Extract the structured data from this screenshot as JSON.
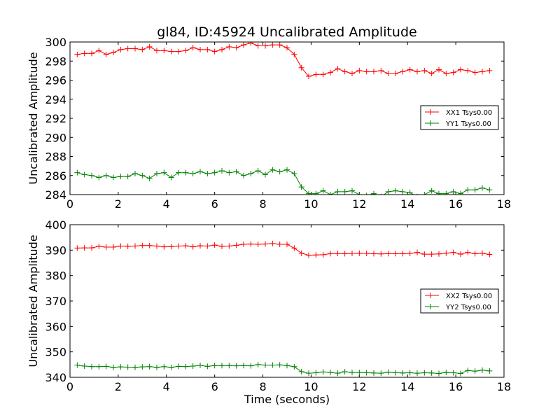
{
  "chart_data": [
    {
      "type": "line",
      "title": "gl84, ID:45924 Uncalibrated Amplitude",
      "xlabel": "",
      "ylabel": "Uncalibrated Amplitude",
      "xlim": [
        0,
        18
      ],
      "ylim": [
        284,
        300
      ],
      "xticks": [
        0,
        2,
        4,
        6,
        8,
        10,
        12,
        14,
        16,
        18
      ],
      "yticks": [
        284,
        286,
        288,
        290,
        292,
        294,
        296,
        298,
        300
      ],
      "grid": false,
      "legend_position": "center-right",
      "x": [
        0.3,
        0.6,
        0.9,
        1.2,
        1.5,
        1.8,
        2.1,
        2.4,
        2.7,
        3.0,
        3.3,
        3.6,
        3.9,
        4.2,
        4.5,
        4.8,
        5.1,
        5.4,
        5.7,
        6.0,
        6.3,
        6.6,
        6.9,
        7.2,
        7.5,
        7.8,
        8.1,
        8.4,
        8.7,
        9.0,
        9.3,
        9.6,
        9.9,
        10.2,
        10.5,
        10.8,
        11.1,
        11.4,
        11.7,
        12.0,
        12.3,
        12.6,
        12.9,
        13.2,
        13.5,
        13.8,
        14.1,
        14.4,
        14.7,
        15.0,
        15.3,
        15.6,
        15.9,
        16.2,
        16.5,
        16.8,
        17.1,
        17.4
      ],
      "series": [
        {
          "name": "XX1 Tsys0.00",
          "color": "#ff0000",
          "values": [
            298.7,
            298.8,
            298.8,
            299.1,
            298.7,
            298.9,
            299.2,
            299.3,
            299.3,
            299.2,
            299.5,
            299.1,
            299.1,
            299.0,
            299.0,
            299.1,
            299.4,
            299.2,
            299.2,
            299.0,
            299.2,
            299.5,
            299.4,
            299.7,
            299.9,
            299.6,
            299.6,
            299.7,
            299.7,
            299.4,
            298.7,
            297.3,
            296.4,
            296.6,
            296.6,
            296.8,
            297.2,
            296.9,
            296.7,
            297.0,
            296.9,
            296.9,
            297.0,
            296.7,
            296.7,
            296.9,
            297.1,
            296.9,
            297.0,
            296.7,
            297.1,
            296.7,
            296.8,
            297.1,
            297.0,
            296.8,
            296.9,
            297.0
          ]
        },
        {
          "name": "YY1 Tsys0.00",
          "color": "#008000",
          "values": [
            286.3,
            286.1,
            286.0,
            285.8,
            286.0,
            285.8,
            285.9,
            285.9,
            286.2,
            286.0,
            285.7,
            286.2,
            286.3,
            285.8,
            286.3,
            286.3,
            286.2,
            286.4,
            286.2,
            286.3,
            286.5,
            286.3,
            286.4,
            286.0,
            286.2,
            286.5,
            286.1,
            286.6,
            286.4,
            286.6,
            286.2,
            284.8,
            284.1,
            284.1,
            284.4,
            284.0,
            284.3,
            284.3,
            284.4,
            284.0,
            283.9,
            284.1,
            283.8,
            284.3,
            284.4,
            284.3,
            284.2,
            283.8,
            284.0,
            284.4,
            284.1,
            284.1,
            284.3,
            284.1,
            284.5,
            284.5,
            284.7,
            284.5
          ]
        }
      ]
    },
    {
      "type": "line",
      "title": "",
      "xlabel": "Time (seconds)",
      "ylabel": "Uncalibrated Amplitude",
      "xlim": [
        0,
        18
      ],
      "ylim": [
        340,
        400
      ],
      "xticks": [
        0,
        2,
        4,
        6,
        8,
        10,
        12,
        14,
        16,
        18
      ],
      "yticks": [
        340,
        350,
        360,
        370,
        380,
        390,
        400
      ],
      "grid": false,
      "legend_position": "center-right",
      "x": [
        0.3,
        0.6,
        0.9,
        1.2,
        1.5,
        1.8,
        2.1,
        2.4,
        2.7,
        3.0,
        3.3,
        3.6,
        3.9,
        4.2,
        4.5,
        4.8,
        5.1,
        5.4,
        5.7,
        6.0,
        6.3,
        6.6,
        6.9,
        7.2,
        7.5,
        7.8,
        8.1,
        8.4,
        8.7,
        9.0,
        9.3,
        9.6,
        9.9,
        10.2,
        10.5,
        10.8,
        11.1,
        11.4,
        11.7,
        12.0,
        12.3,
        12.6,
        12.9,
        13.2,
        13.5,
        13.8,
        14.1,
        14.4,
        14.7,
        15.0,
        15.3,
        15.6,
        15.9,
        16.2,
        16.5,
        16.8,
        17.1,
        17.4
      ],
      "series": [
        {
          "name": "XX2 Tsys0.00",
          "color": "#ff0000",
          "values": [
            390.8,
            390.9,
            390.9,
            391.5,
            391.2,
            391.2,
            391.6,
            391.5,
            391.6,
            391.8,
            391.8,
            391.6,
            391.3,
            391.4,
            391.6,
            391.7,
            391.3,
            391.7,
            391.6,
            392.0,
            391.5,
            391.6,
            391.9,
            392.3,
            392.4,
            392.3,
            392.4,
            392.6,
            392.3,
            392.3,
            390.8,
            388.8,
            388.0,
            388.1,
            388.2,
            388.6,
            388.7,
            388.6,
            388.7,
            388.8,
            388.7,
            388.6,
            388.5,
            388.6,
            388.6,
            388.6,
            388.7,
            389.1,
            388.4,
            388.4,
            388.5,
            388.8,
            389.1,
            388.4,
            389.1,
            388.6,
            388.8,
            388.3
          ]
        },
        {
          "name": "YY2 Tsys0.00",
          "color": "#008000",
          "values": [
            344.8,
            344.4,
            344.2,
            344.2,
            344.3,
            343.9,
            344.1,
            344.0,
            343.9,
            344.1,
            344.2,
            343.9,
            344.2,
            343.9,
            344.3,
            344.2,
            344.4,
            344.7,
            344.3,
            344.6,
            344.6,
            344.6,
            344.5,
            344.6,
            344.5,
            345.0,
            344.8,
            344.8,
            344.9,
            344.6,
            344.2,
            342.2,
            341.6,
            341.8,
            342.1,
            341.9,
            341.6,
            342.2,
            341.9,
            341.9,
            341.8,
            341.7,
            341.6,
            342.0,
            341.8,
            341.7,
            341.8,
            341.6,
            341.8,
            341.7,
            341.5,
            341.9,
            341.8,
            341.5,
            342.7,
            342.4,
            342.8,
            342.5
          ]
        }
      ]
    }
  ]
}
